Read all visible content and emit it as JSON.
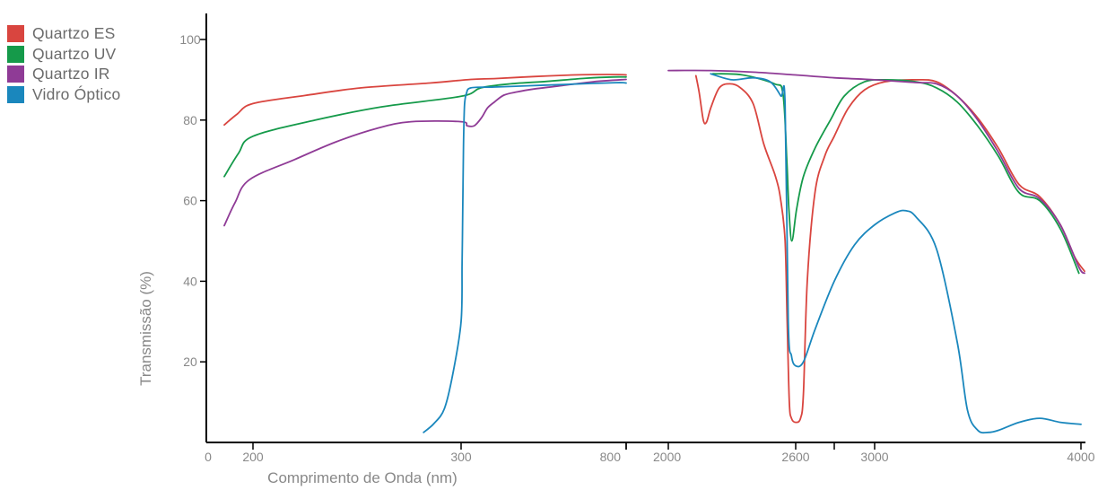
{
  "chart_data": {
    "type": "line",
    "title": "",
    "xlabel": "Comprimento de Onda (nm)",
    "ylabel": "Transmissão (%)",
    "ylim": [
      0,
      100
    ],
    "y_ticks": [
      20,
      40,
      60,
      80,
      100
    ],
    "grid": false,
    "legend_position": "top-left",
    "x_segments": [
      {
        "range": [
          0,
          800
        ],
        "tick_labels": [
          "0",
          "200",
          "300",
          "800"
        ]
      },
      {
        "range": [
          2000,
          4000
        ],
        "tick_labels": [
          "2000",
          "2600",
          "3000",
          "4000"
        ]
      }
    ],
    "series": [
      {
        "name": "Quartzo ES",
        "color": "#d9453f",
        "points": [
          [
            160,
            78.8
          ],
          [
            178,
            81.5
          ],
          [
            200,
            84.1
          ],
          [
            225,
            86.1
          ],
          [
            252,
            88.0
          ],
          [
            285,
            89.2
          ],
          [
            330,
            90.1
          ],
          [
            400,
            90.3
          ],
          [
            520,
            90.8
          ],
          [
            640,
            91.2
          ],
          [
            700,
            91.3
          ],
          [
            780,
            91.3
          ],
          [
            800,
            91.2
          ],
          [
            2000,
            null
          ],
          [
            2130,
            91
          ],
          [
            2145,
            87
          ],
          [
            2165,
            80
          ],
          [
            2180,
            79.5
          ],
          [
            2200,
            83
          ],
          [
            2240,
            88
          ],
          [
            2290,
            89
          ],
          [
            2340,
            88
          ],
          [
            2400,
            84
          ],
          [
            2450,
            74
          ],
          [
            2505,
            66
          ],
          [
            2530,
            60
          ],
          [
            2550,
            50
          ],
          [
            2560,
            30
          ],
          [
            2570,
            10
          ],
          [
            2580,
            6
          ],
          [
            2600,
            5
          ],
          [
            2625,
            6
          ],
          [
            2640,
            12
          ],
          [
            2660,
            40
          ],
          [
            2700,
            62
          ],
          [
            2750,
            71
          ],
          [
            2800,
            76
          ],
          [
            2870,
            83
          ],
          [
            2950,
            87.5
          ],
          [
            3050,
            89.5
          ],
          [
            3200,
            90
          ],
          [
            3300,
            89.5
          ],
          [
            3400,
            86
          ],
          [
            3500,
            80.5
          ],
          [
            3600,
            73
          ],
          [
            3700,
            64
          ],
          [
            3800,
            61
          ],
          [
            3900,
            54
          ],
          [
            3970,
            46
          ],
          [
            4020,
            42.5
          ]
        ]
      },
      {
        "name": "Quartzo UV",
        "color": "#159a4a",
        "points": [
          [
            160,
            66.0
          ],
          [
            180,
            71.8
          ],
          [
            200,
            76.0
          ],
          [
            230,
            80.0
          ],
          [
            262,
            83.3
          ],
          [
            300,
            85.9
          ],
          [
            360,
            88.0
          ],
          [
            450,
            89.0
          ],
          [
            560,
            89.6
          ],
          [
            680,
            90.4
          ],
          [
            760,
            90.7
          ],
          [
            800,
            90.7
          ],
          [
            2000,
            null
          ],
          [
            2210,
            91.5
          ],
          [
            2350,
            91.2
          ],
          [
            2500,
            89
          ],
          [
            2540,
            86.5
          ],
          [
            2558,
            70
          ],
          [
            2568,
            58
          ],
          [
            2582,
            50
          ],
          [
            2605,
            58
          ],
          [
            2640,
            66
          ],
          [
            2700,
            73
          ],
          [
            2780,
            80
          ],
          [
            2850,
            86
          ],
          [
            2950,
            89.5
          ],
          [
            3050,
            90
          ],
          [
            3200,
            89.5
          ],
          [
            3300,
            88
          ],
          [
            3400,
            84.5
          ],
          [
            3500,
            78.5
          ],
          [
            3600,
            71
          ],
          [
            3700,
            62
          ],
          [
            3800,
            60
          ],
          [
            3900,
            53
          ],
          [
            3990,
            42
          ]
        ]
      },
      {
        "name": "Quartzo IR",
        "color": "#8f3b96",
        "points": [
          [
            160,
            53.8
          ],
          [
            175,
            59.5
          ],
          [
            195,
            65.2
          ],
          [
            220,
            70.2
          ],
          [
            240,
            74.6
          ],
          [
            260,
            78.0
          ],
          [
            276,
            79.6
          ],
          [
            300,
            79.6
          ],
          [
            318,
            78.6
          ],
          [
            340,
            78.6
          ],
          [
            362,
            80.6
          ],
          [
            380,
            83.0
          ],
          [
            400,
            84.4
          ],
          [
            430,
            86.2
          ],
          [
            470,
            87.0
          ],
          [
            520,
            87.7
          ],
          [
            600,
            88.5
          ],
          [
            700,
            89.5
          ],
          [
            800,
            90.1
          ],
          [
            2000,
            null
          ],
          [
            2000,
            92.3
          ],
          [
            2200,
            92.3
          ],
          [
            2400,
            91.9
          ],
          [
            2600,
            91.2
          ],
          [
            2800,
            90.5
          ],
          [
            3000,
            90
          ],
          [
            3200,
            89.3
          ],
          [
            3300,
            89
          ],
          [
            3400,
            86
          ],
          [
            3500,
            80
          ],
          [
            3600,
            72
          ],
          [
            3700,
            63
          ],
          [
            3800,
            60.5
          ],
          [
            3900,
            54
          ],
          [
            3990,
            43.5
          ],
          [
            4020,
            42
          ]
        ]
      },
      {
        "name": "Vidro Óptico",
        "color": "#1a87bd",
        "points": [
          [
            282,
            2.5
          ],
          [
            287,
            4.7
          ],
          [
            292,
            8.4
          ],
          [
            296,
            16.9
          ],
          [
            300,
            30
          ],
          [
            303,
            44.3
          ],
          [
            305,
            57
          ],
          [
            307,
            72.2
          ],
          [
            309,
            80.5
          ],
          [
            311,
            84.3
          ],
          [
            316,
            86.6
          ],
          [
            330,
            88.0
          ],
          [
            400,
            88.2
          ],
          [
            500,
            88.5
          ],
          [
            600,
            88.8
          ],
          [
            700,
            89.1
          ],
          [
            780,
            89.3
          ],
          [
            800,
            89.2
          ],
          [
            2000,
            null
          ],
          [
            2200,
            91.5
          ],
          [
            2300,
            90
          ],
          [
            2400,
            90.5
          ],
          [
            2480,
            89.5
          ],
          [
            2530,
            86
          ],
          [
            2550,
            84
          ],
          [
            2565,
            30
          ],
          [
            2580,
            21.5
          ],
          [
            2600,
            19
          ],
          [
            2640,
            20
          ],
          [
            2700,
            28
          ],
          [
            2800,
            40
          ],
          [
            2900,
            49
          ],
          [
            3000,
            54
          ],
          [
            3100,
            57
          ],
          [
            3150,
            57.5
          ],
          [
            3200,
            56
          ],
          [
            3300,
            48
          ],
          [
            3400,
            25
          ],
          [
            3450,
            8
          ],
          [
            3500,
            3
          ],
          [
            3550,
            2.5
          ],
          [
            3600,
            3
          ],
          [
            3700,
            5
          ],
          [
            3800,
            6
          ],
          [
            3900,
            5
          ],
          [
            4000,
            4.5
          ]
        ]
      }
    ]
  }
}
